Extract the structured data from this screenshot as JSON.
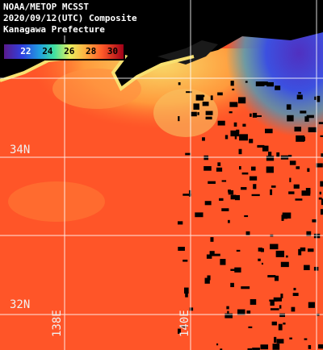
{
  "map": {
    "title_lines": [
      "NOAA/METOP MCSST",
      "2020/09/12(UTC) Composite",
      "Kanagawa Prefecture"
    ],
    "colorbar": {
      "range": [
        20,
        31
      ],
      "ticks": [
        22,
        24,
        26,
        28,
        30
      ]
    },
    "lat_labels": [
      "34N",
      "32N"
    ],
    "lon_labels": [
      "138E",
      "140E"
    ]
  }
}
